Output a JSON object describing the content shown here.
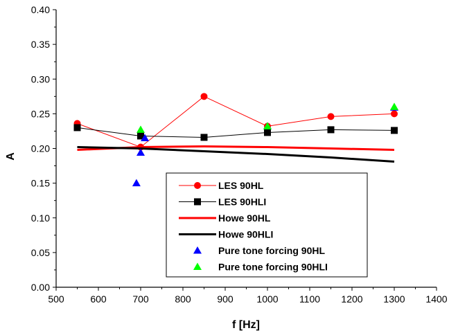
{
  "chart_data": {
    "type": "line",
    "xlabel": "f [Hz]",
    "ylabel": "A",
    "xlim": [
      500,
      1400
    ],
    "ylim": [
      0.0,
      0.4
    ],
    "xticks": [
      "500",
      "600",
      "700",
      "800",
      "900",
      "1000",
      "1100",
      "1200",
      "1300",
      "1400"
    ],
    "yticks": [
      "0.00",
      "0.05",
      "0.10",
      "0.15",
      "0.20",
      "0.25",
      "0.30",
      "0.35",
      "0.40"
    ],
    "grid": false,
    "legend_position": "center",
    "series": [
      {
        "name": "LES 90HL",
        "color": "#ff0000",
        "marker": "circle",
        "line": "thin",
        "x": [
          550,
          700,
          850,
          1000,
          1150,
          1300
        ],
        "y": [
          0.236,
          0.202,
          0.275,
          0.232,
          0.246,
          0.25
        ]
      },
      {
        "name": "LES 90HLI",
        "color": "#000000",
        "marker": "square",
        "line": "thin",
        "x": [
          550,
          700,
          850,
          1000,
          1150,
          1300
        ],
        "y": [
          0.23,
          0.218,
          0.216,
          0.223,
          0.227,
          0.226
        ]
      },
      {
        "name": "Howe 90HL",
        "color": "#ff0000",
        "marker": "none",
        "line": "thick",
        "x": [
          550,
          700,
          850,
          1000,
          1150,
          1300
        ],
        "y": [
          0.198,
          0.202,
          0.203,
          0.202,
          0.2,
          0.198
        ]
      },
      {
        "name": "Howe 90HLI",
        "color": "#000000",
        "marker": "none",
        "line": "thick",
        "x": [
          550,
          700,
          850,
          1000,
          1150,
          1300
        ],
        "y": [
          0.202,
          0.2,
          0.196,
          0.192,
          0.187,
          0.181
        ]
      },
      {
        "name": "Pure tone forcing 90HL",
        "color": "#0000ff",
        "marker": "triangle",
        "line": "none",
        "x": [
          690,
          700,
          710,
          1000,
          1300
        ],
        "y": [
          0.15,
          0.194,
          0.215,
          0.232,
          0.259
        ]
      },
      {
        "name": "Pure tone forcing 90HLI",
        "color": "#00ff00",
        "marker": "triangle",
        "line": "none",
        "x": [
          700,
          1000,
          1300
        ],
        "y": [
          0.227,
          0.232,
          0.26
        ]
      }
    ]
  }
}
